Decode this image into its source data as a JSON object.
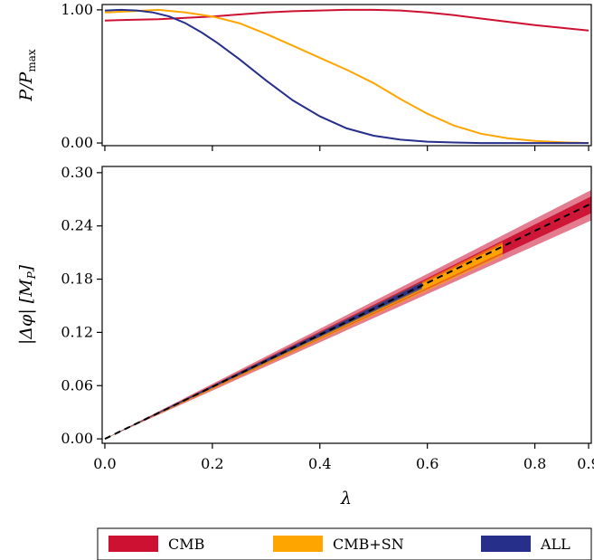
{
  "chart_data": [
    {
      "type": "line",
      "ylabel": "P/P",
      "ylabel_sub": "max",
      "xlim": [
        -0.005,
        0.905
      ],
      "ylim": [
        -0.02,
        1.04
      ],
      "yticks": [
        0.0,
        1.0
      ],
      "ytick_labels": [
        "0.00",
        "1.00"
      ],
      "xticks": [
        0.0,
        0.2,
        0.4,
        0.6,
        0.8,
        0.9
      ],
      "series": [
        {
          "name": "CMB",
          "color": "#cc1133",
          "x": [
            0.0,
            0.05,
            0.1,
            0.15,
            0.2,
            0.25,
            0.3,
            0.35,
            0.4,
            0.45,
            0.5,
            0.55,
            0.6,
            0.65,
            0.7,
            0.75,
            0.8,
            0.85,
            0.9
          ],
          "y": [
            0.92,
            0.925,
            0.93,
            0.94,
            0.95,
            0.965,
            0.98,
            0.99,
            0.995,
            1.0,
            1.0,
            0.995,
            0.98,
            0.96,
            0.935,
            0.91,
            0.885,
            0.865,
            0.845
          ]
        },
        {
          "name": "CMB+SN",
          "color": "#ffa500",
          "x": [
            0.0,
            0.05,
            0.1,
            0.15,
            0.2,
            0.25,
            0.3,
            0.35,
            0.4,
            0.45,
            0.5,
            0.55,
            0.6,
            0.65,
            0.7,
            0.75,
            0.8,
            0.85,
            0.9
          ],
          "y": [
            0.98,
            0.99,
            1.0,
            0.98,
            0.95,
            0.9,
            0.82,
            0.73,
            0.64,
            0.55,
            0.45,
            0.33,
            0.22,
            0.13,
            0.07,
            0.035,
            0.015,
            0.005,
            0.0
          ]
        },
        {
          "name": "ALL",
          "color": "#262f8a",
          "x": [
            0.0,
            0.03,
            0.06,
            0.09,
            0.12,
            0.15,
            0.18,
            0.21,
            0.25,
            0.3,
            0.35,
            0.4,
            0.45,
            0.5,
            0.55,
            0.6,
            0.65,
            0.7,
            0.75,
            0.8,
            0.85,
            0.9
          ],
          "y": [
            0.995,
            1.0,
            0.995,
            0.98,
            0.95,
            0.9,
            0.83,
            0.75,
            0.63,
            0.47,
            0.32,
            0.2,
            0.11,
            0.055,
            0.025,
            0.01,
            0.004,
            0.0,
            0.0,
            0.0,
            0.0,
            0.0
          ]
        }
      ]
    },
    {
      "type": "area",
      "xlabel": "λ",
      "ylabel": "|Δφ| [M",
      "ylabel_sub": "P",
      "xlim": [
        -0.005,
        0.905
      ],
      "ylim": [
        -0.005,
        0.307
      ],
      "xticks": [
        0.0,
        0.2,
        0.4,
        0.6,
        0.8,
        0.9
      ],
      "xtick_labels": [
        "0.0",
        "0.2",
        "0.4",
        "0.6",
        "0.8",
        "0.9"
      ],
      "yticks": [
        0.0,
        0.06,
        0.12,
        0.18,
        0.24,
        0.3
      ],
      "ytick_labels": [
        "0.00",
        "0.06",
        "0.12",
        "0.18",
        "0.24",
        "0.30"
      ],
      "bands": [
        {
          "name": "CMB",
          "x_end": 0.905,
          "outer_slope": [
            0.272,
            0.31
          ],
          "inner_slope": [
            0.281,
            0.302
          ],
          "fill_color": "#cc1133",
          "inner_color": "#e05a72"
        },
        {
          "name": "CMB+SN",
          "x_end": 0.74,
          "outer_slope": [
            0.278,
            0.3
          ],
          "inner_slope": [
            0.284,
            0.296
          ],
          "fill_color": "#ffa500"
        },
        {
          "name": "ALL",
          "x_end": 0.59,
          "outer_slope": [
            0.286,
            0.3
          ],
          "inner_slope": [
            0.289,
            0.298
          ],
          "fill_color": "#262f8a"
        }
      ],
      "dashed_line": {
        "slope": 0.293,
        "intercept": 0.0,
        "x_end": 0.905,
        "color": "#000000"
      },
      "legend": [
        {
          "label": "CMB",
          "color": "#cc1133"
        },
        {
          "label": "CMB+SN",
          "color": "#ffa500"
        },
        {
          "label": "ALL",
          "color": "#262f8a"
        }
      ],
      "legend_position": "bottom"
    }
  ]
}
